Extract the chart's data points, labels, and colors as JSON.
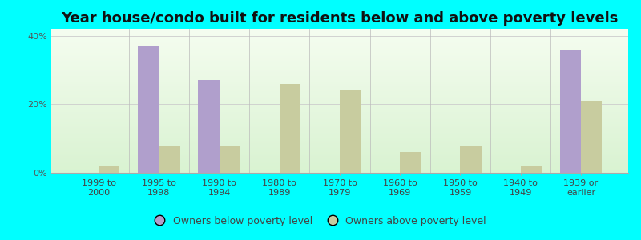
{
  "title": "Year house/condo built for residents below and above poverty levels",
  "categories": [
    "1999 to\n2000",
    "1995 to\n1998",
    "1990 to\n1994",
    "1980 to\n1989",
    "1970 to\n1979",
    "1960 to\n1969",
    "1950 to\n1959",
    "1940 to\n1949",
    "1939 or\nearlier"
  ],
  "below_poverty": [
    0,
    37,
    27,
    0,
    0,
    0,
    0,
    0,
    36
  ],
  "above_poverty": [
    2,
    8,
    8,
    26,
    24,
    6,
    8,
    2,
    21
  ],
  "below_color": "#b09fcc",
  "above_color": "#c8cc9f",
  "ylim": [
    0,
    42
  ],
  "yticks": [
    0,
    20,
    40
  ],
  "ytick_labels": [
    "0%",
    "20%",
    "40%"
  ],
  "bar_width": 0.35,
  "background_color": "#00ffff",
  "legend_below_label": "Owners below poverty level",
  "legend_above_label": "Owners above poverty level",
  "title_fontsize": 13,
  "tick_fontsize": 8
}
